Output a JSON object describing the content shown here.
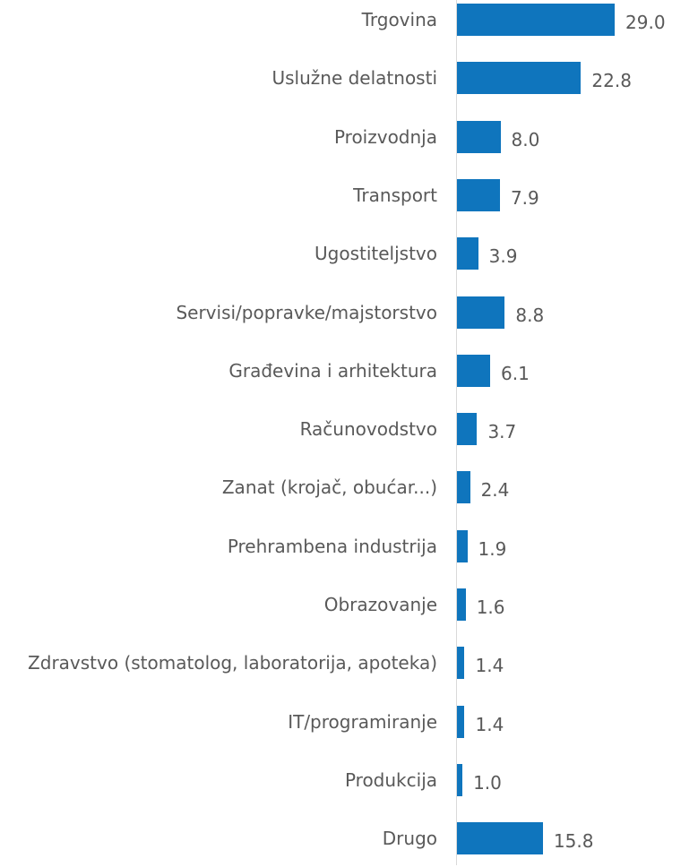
{
  "chart_data": {
    "type": "bar",
    "orientation": "horizontal",
    "color": "#0f75bd",
    "categories": [
      "Trgovina",
      "Uslužne delatnosti",
      "Proizvodnja",
      "Transport",
      "Ugostiteljstvo",
      "Servisi/popravke/majstorstvo",
      "Građevina i arhitektura",
      "Računovodstvo",
      "Zanat (krojač, obućar...)",
      "Prehrambena industrija",
      "Obrazovanje",
      "Zdravstvo (stomatolog, laboratorija, apoteka)",
      "IT/programiranje",
      "Produkcija",
      "Drugo"
    ],
    "values": [
      29,
      22.8,
      8,
      7.9,
      3.9,
      8.8,
      6.1,
      3.7,
      2.4,
      1.9,
      1.6,
      1.4,
      1.4,
      1,
      15.8
    ],
    "value_labels": [
      "29.0",
      "22.8",
      "8.0",
      "7.9",
      "3.9",
      "8.8",
      "6.1",
      "3.7",
      "2.4",
      "1.9",
      "1.6",
      "1.4",
      "1.4",
      "1.0",
      "15.8"
    ]
  }
}
